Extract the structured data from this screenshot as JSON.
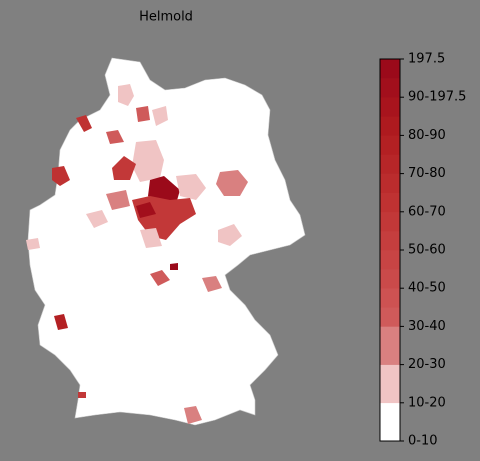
{
  "title": "Helmold",
  "colorbar": {
    "ticks": [
      197.5,
      "90-197.5",
      "80-90",
      "70-80",
      "60-70",
      "50-60",
      "40-50",
      "30-40",
      "20-30",
      "10-20",
      "0-10"
    ],
    "colors": [
      "#ffffff",
      "#ffffff",
      "#f0c4c4",
      "#f0c4c4",
      "#d98080",
      "#d98080",
      "#cf5a5a",
      "#cd5252",
      "#ca4a4a",
      "#c84444",
      "#c53e3e",
      "#c23838",
      "#bf3232",
      "#bb2c2d",
      "#b72628",
      "#b32023",
      "#ae1a1f",
      "#a8141d",
      "#a20f1c",
      "#9b0a1a"
    ]
  }
}
